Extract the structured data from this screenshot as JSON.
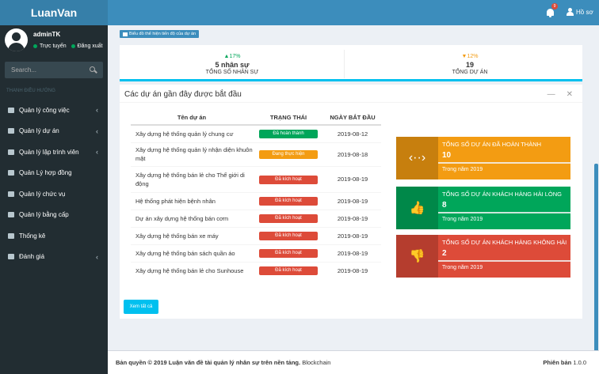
{
  "app": {
    "logo": "LuanVan"
  },
  "user": {
    "name": "adminTK",
    "status": "Trực tuyến",
    "logout": "Đăng xuất"
  },
  "search": {
    "placeholder": "Search..."
  },
  "menu": {
    "header": "THANH ĐIỀU HƯỚNG",
    "items": [
      {
        "label": "Quản lý công việc",
        "chev": "‹"
      },
      {
        "label": "Quản lý dự án",
        "chev": "‹"
      },
      {
        "label": "Quản lý lập trình viên",
        "chev": "‹"
      },
      {
        "label": "Quản Lý hợp đồng",
        "chev": ""
      },
      {
        "label": "Quản lý chức vụ",
        "chev": ""
      },
      {
        "label": "Quản lý bằng cấp",
        "chev": ""
      },
      {
        "label": "Thống kê",
        "chev": ""
      },
      {
        "label": "Đánh giá",
        "chev": "‹"
      }
    ]
  },
  "topbar": {
    "notifications": "9",
    "profile": "Hồ sơ"
  },
  "chart_button": "Biểu đồ thể hiện tiến độ của dự án",
  "stats": [
    {
      "pct": "▲17%",
      "value": "5 nhân sự",
      "label": "TỔNG SỐ NHÂN SỰ",
      "color": "#00a65a"
    },
    {
      "pct": "▼12%",
      "value": "19",
      "label": "TỔNG DỰ ÁN",
      "color": "#f39c12"
    }
  ],
  "projects": {
    "title": "Các dự án gần đây được bắt đầu",
    "headers": [
      "Tên dự án",
      "TRẠNG THÁI",
      "NGÀY BẮT ĐẦU"
    ],
    "rows": [
      {
        "name": "Xây dựng hệ thống quản lý chung cư",
        "status": "Đã hoàn thành",
        "color": "#00a65a",
        "date": "2019-08-12"
      },
      {
        "name": "Xây dựng hệ thống quản lý nhận diện khuôn mặt",
        "status": "Đang thực hiện",
        "color": "#f39c12",
        "date": "2019-08-18"
      },
      {
        "name": "Xây dựng hệ thống bán lẻ cho Thế giới di động",
        "status": "Đã kích hoạt",
        "color": "#dd4b39",
        "date": "2019-08-19"
      },
      {
        "name": "Hệ thống phát hiện bệnh nhân",
        "status": "Đã kích hoạt",
        "color": "#dd4b39",
        "date": "2019-08-19"
      },
      {
        "name": "Dự án xây dựng hệ thống bán cơm",
        "status": "Đã kích hoạt",
        "color": "#dd4b39",
        "date": "2019-08-19"
      },
      {
        "name": "Xây dựng hệ thống bán xe máy",
        "status": "Đã kích hoạt",
        "color": "#dd4b39",
        "date": "2019-08-19"
      },
      {
        "name": "Xây dựng hệ thống bán sách quần áo",
        "status": "Đã kích hoạt",
        "color": "#dd4b39",
        "date": "2019-08-19"
      },
      {
        "name": "Xây dựng hệ thống bán lẻ cho Sunhouse",
        "status": "Đã kích hoạt",
        "color": "#dd4b39",
        "date": "2019-08-19"
      }
    ],
    "view_all": "Xem tất cả"
  },
  "info_boxes": [
    {
      "title": "TỔNG SỐ DỰ ÁN ĐÃ HOÀN THÀNH",
      "number": "10",
      "desc": "Trong năm 2019",
      "color": "#f39c12",
      "icon": "‹··›"
    },
    {
      "title": "TỔNG SỐ DỰ ÁN KHÁCH HÀNG HÀI LÒNG",
      "number": "8",
      "desc": "Trong năm 2019",
      "color": "#00a65a",
      "icon": "👍"
    },
    {
      "title": "TỔNG SỐ DỰ ÁN KHÁCH HÀNG KHÔNG HÀI ...",
      "number": "2",
      "desc": "Trong năm 2019",
      "color": "#dd4b39",
      "icon": "👎"
    }
  ],
  "footer": {
    "copyright": "Bản quyền © 2019 Luận văn đề tài quản lý nhân sự trên nền tảng.",
    "tech": "Blockchain",
    "version_label": "Phiên bản",
    "version": "1.0.0"
  }
}
